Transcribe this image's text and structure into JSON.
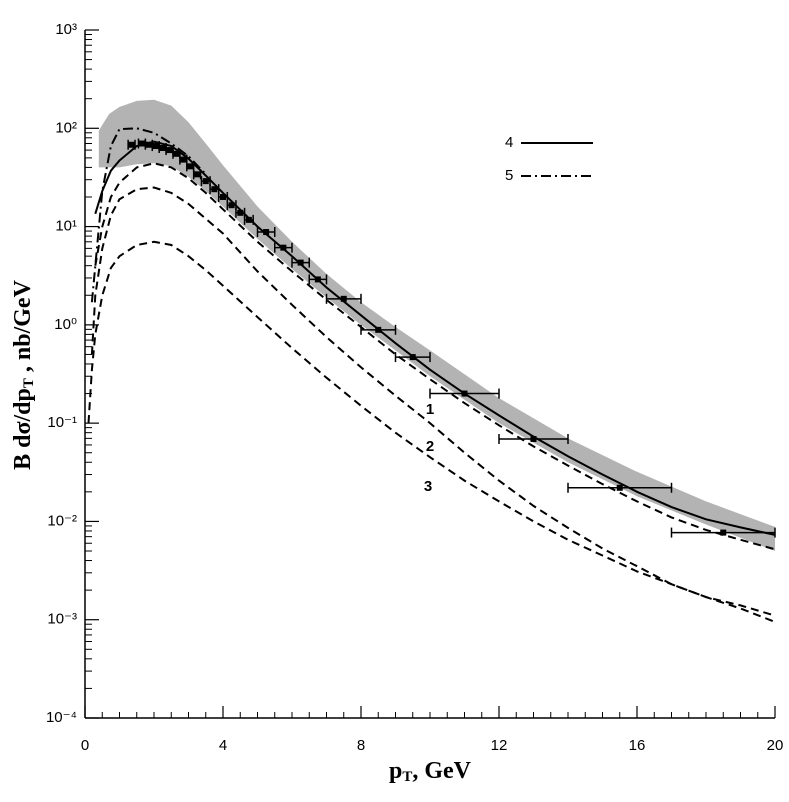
{
  "chart_data": {
    "type": "line",
    "x_label": [
      "p",
      "T",
      ", GeV"
    ],
    "y_label": [
      "B dσ/dp",
      "T",
      " , nb/GeV"
    ],
    "xlim": [
      0,
      20
    ],
    "xticks": [
      0,
      4,
      8,
      12,
      16,
      20
    ],
    "ylim": [
      0.0001,
      1000
    ],
    "log_y": true,
    "minor_ticks": true,
    "yticks": [
      {
        "value": 0.0001,
        "label": "10⁻⁴"
      },
      {
        "value": 0.001,
        "label": "10⁻³"
      },
      {
        "value": 0.01,
        "label": "10⁻²"
      },
      {
        "value": 0.1,
        "label": "10⁻¹"
      },
      {
        "value": 1,
        "label": "10⁰"
      },
      {
        "value": 10,
        "label": "10¹"
      },
      {
        "value": 100,
        "label": "10²"
      },
      {
        "value": 1000,
        "label": "10³"
      }
    ],
    "legend": "upper right",
    "band": {
      "color": "#b3b3b3",
      "x": [
        0.4,
        0.7,
        1,
        1.5,
        2,
        2.5,
        3,
        3.5,
        4,
        5,
        6,
        7,
        8,
        9,
        10,
        12,
        14,
        16,
        18,
        20
      ],
      "upper": [
        95,
        140,
        165,
        190,
        195,
        170,
        115,
        70,
        42,
        16,
        7,
        3.3,
        1.7,
        0.95,
        0.55,
        0.18,
        0.07,
        0.032,
        0.016,
        0.0088
      ],
      "lower": [
        40,
        40,
        40,
        43,
        44,
        41,
        32,
        23,
        16,
        7.5,
        3.7,
        1.9,
        1.0,
        0.55,
        0.3,
        0.1,
        0.04,
        0.018,
        0.0093,
        0.005
      ]
    },
    "series": [
      {
        "name": "4",
        "color": "#000000",
        "style": "solid",
        "x": [
          0.3,
          0.5,
          0.75,
          1,
          1.5,
          2,
          2.5,
          3,
          3.5,
          4,
          5,
          6,
          7,
          8,
          9,
          10,
          11,
          12,
          13,
          14,
          15,
          16,
          17,
          18,
          19,
          20
        ],
        "values": [
          13.5,
          23,
          37,
          47,
          66,
          73,
          66,
          49,
          33,
          22,
          10,
          5,
          2.4,
          1.25,
          0.65,
          0.35,
          0.2,
          0.12,
          0.073,
          0.046,
          0.03,
          0.02,
          0.014,
          0.0105,
          0.0087,
          0.0073
        ]
      },
      {
        "name": "5",
        "color": "#000000",
        "style": "dashdot",
        "x": [
          0.2,
          0.5,
          0.75,
          1,
          1.5,
          2,
          2.5,
          3,
          3.5
        ],
        "values": [
          1.7,
          23,
          66,
          98,
          100,
          90,
          70,
          52,
          34
        ]
      },
      {
        "color": "#000000",
        "style": "dashed",
        "x": [
          0.3,
          0.5,
          0.75,
          1,
          1.5,
          2,
          2.5,
          3,
          3.5,
          4,
          5,
          6,
          7,
          8,
          9,
          10,
          11,
          12,
          13,
          14,
          15,
          16,
          17,
          18,
          19,
          20
        ],
        "values": [
          4,
          10,
          20,
          28,
          40,
          44,
          40,
          31,
          22,
          15,
          7,
          3.5,
          1.8,
          0.95,
          0.5,
          0.28,
          0.16,
          0.095,
          0.058,
          0.037,
          0.024,
          0.016,
          0.011,
          0.0082,
          0.0065,
          0.0052
        ]
      },
      {
        "color": "#000000",
        "style": "dashed",
        "x": [
          0.2,
          0.3,
          0.5,
          0.75,
          1,
          1.5,
          2,
          2.5,
          3,
          3.5,
          4,
          5,
          6,
          7,
          8,
          9,
          10,
          11,
          12,
          13,
          14,
          15,
          16,
          17,
          18,
          19,
          20
        ],
        "values": [
          0.5,
          2,
          6,
          13,
          19,
          24,
          25,
          22,
          17,
          12,
          8.5,
          3.5,
          1.6,
          0.75,
          0.37,
          0.19,
          0.1,
          0.05,
          0.026,
          0.0144,
          0.0086,
          0.0053,
          0.0035,
          0.0023,
          0.0017,
          0.0014,
          0.0011
        ]
      },
      {
        "color": "#000000",
        "style": "dashed",
        "x": [
          0.1,
          0.2,
          0.3,
          0.5,
          0.75,
          1,
          1.5,
          2,
          2.5,
          3,
          3.5,
          4,
          5,
          6,
          7,
          8,
          9,
          10,
          11,
          12,
          13,
          14,
          15,
          16,
          17,
          18,
          19,
          20
        ],
        "values": [
          0.1,
          0.35,
          0.8,
          2,
          3.8,
          5,
          6.5,
          7,
          6.5,
          5,
          3.6,
          2.5,
          1.2,
          0.58,
          0.29,
          0.15,
          0.08,
          0.045,
          0.026,
          0.016,
          0.01,
          0.0065,
          0.0045,
          0.0031,
          0.0023,
          0.0017,
          0.0013,
          0.00095
        ]
      }
    ],
    "points": {
      "color": "#000000",
      "x": [
        1.35,
        1.65,
        1.85,
        2.05,
        2.25,
        2.45,
        2.65,
        2.85,
        3.05,
        3.25,
        3.5,
        3.75,
        4.0,
        4.25,
        4.5,
        4.75,
        5.25,
        5.75,
        6.25,
        6.75,
        7.5,
        8.5,
        9.5,
        11,
        13,
        15.5,
        18.5
      ],
      "xerr": [
        0.1,
        0.1,
        0.1,
        0.1,
        0.1,
        0.1,
        0.1,
        0.1,
        0.1,
        0.1,
        0.125,
        0.125,
        0.125,
        0.125,
        0.125,
        0.125,
        0.25,
        0.25,
        0.25,
        0.25,
        0.5,
        0.5,
        0.5,
        1,
        1,
        1.5,
        1.5
      ],
      "values": [
        68,
        70,
        68,
        66,
        63,
        60,
        55,
        48,
        41,
        34,
        29,
        24,
        20,
        16.5,
        13.8,
        11.7,
        8.8,
        6.1,
        4.3,
        2.9,
        1.84,
        0.89,
        0.47,
        0.2,
        0.069,
        0.022,
        0.0077
      ]
    },
    "annotations": [
      "1",
      "2",
      "3"
    ]
  }
}
